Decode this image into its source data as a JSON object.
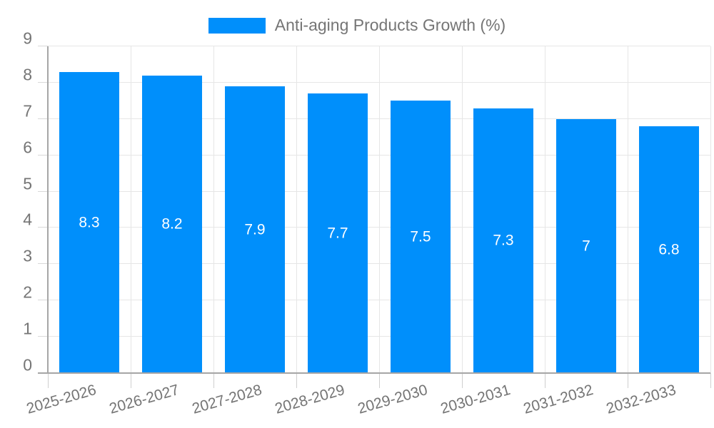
{
  "legend": {
    "label": "Anti-aging Products Growth (%)",
    "swatch_color": "#008FFB"
  },
  "chart_data": {
    "type": "bar",
    "title": "Anti-aging Products Growth (%)",
    "categories": [
      "2025-2026",
      "2026-2027",
      "2027-2028",
      "2028-2029",
      "2029-2030",
      "2030-2031",
      "2031-2032",
      "2032-2033"
    ],
    "values": [
      8.3,
      8.2,
      7.9,
      7.7,
      7.5,
      7.3,
      7,
      6.8
    ],
    "xlabel": "",
    "ylabel": "",
    "ylim": [
      0,
      9
    ],
    "ytick_step": 1,
    "yticks": [
      0,
      1,
      2,
      3,
      4,
      5,
      6,
      7,
      8,
      9
    ],
    "grid": true,
    "legend_position": "top-center",
    "bar_color": "#008FFB",
    "value_label_color": "#ffffff",
    "value_label_position": "middle",
    "xtick_label_rotation_deg": -16
  },
  "colors": {
    "axis": "#a6a6a6",
    "gridline": "#e6e6e6",
    "tick": "#d0d0d0",
    "tick_label": "#757575",
    "background": "#ffffff"
  }
}
